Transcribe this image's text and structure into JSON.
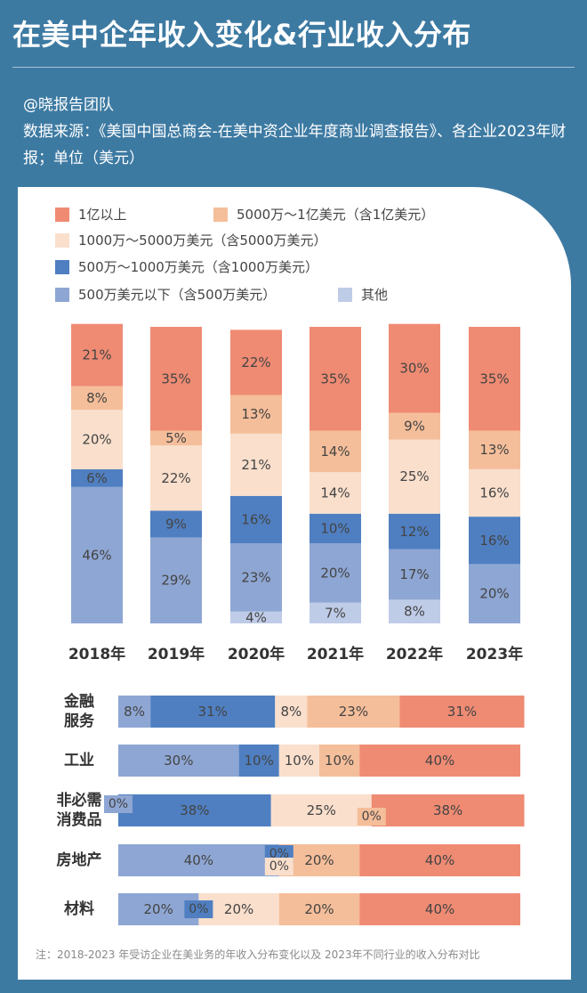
{
  "header": {
    "title": "在美中企年收入变化&行业收入分布",
    "author": "@晓报告团队",
    "source": "数据来源：《美国中国总商会-在美中资企业年度商业调查报告》、各企业2023年财报；单位（美元）"
  },
  "colors": {
    "over100m": "#ef8b73",
    "c50m_100m": "#f5be9a",
    "c10m_50m": "#f9dfcc",
    "c5m_10m": "#4f7fc1",
    "under5m": "#8ea6d3",
    "other": "#bfcce8"
  },
  "chart_data": [
    {
      "type": "bar",
      "stacked": true,
      "orientation": "vertical",
      "categories": [
        "2018年",
        "2019年",
        "2020年",
        "2021年",
        "2022年",
        "2023年"
      ],
      "stack_order": "bottom-to-top",
      "series": [
        {
          "key": "other",
          "name": "其他",
          "values": [
            0,
            0,
            4,
            7,
            8,
            0
          ]
        },
        {
          "key": "under5m",
          "name": "500万美元以下（含500万美元）",
          "values": [
            46,
            29,
            23,
            20,
            17,
            20
          ]
        },
        {
          "key": "c5m_10m",
          "name": "500万～1000万美元（含1000万美元）",
          "values": [
            6,
            9,
            16,
            10,
            12,
            16
          ]
        },
        {
          "key": "c10m_50m",
          "name": "1000万～5000万美元（含5000万美元）",
          "values": [
            20,
            22,
            21,
            14,
            25,
            16
          ]
        },
        {
          "key": "c50m_100m",
          "name": "5000万～1亿美元（含1亿美元）",
          "values": [
            8,
            5,
            13,
            14,
            9,
            13
          ]
        },
        {
          "key": "over100m",
          "name": "1亿以上",
          "values": [
            21,
            35,
            22,
            35,
            30,
            35
          ]
        }
      ],
      "unit": "%",
      "legend_position": "top"
    },
    {
      "type": "bar",
      "stacked": true,
      "orientation": "horizontal",
      "categories": [
        [
          "金融",
          "服务"
        ],
        [
          "工业"
        ],
        [
          "非必需",
          "消费品"
        ],
        [
          "房地产"
        ],
        [
          "材料"
        ]
      ],
      "stack_order": "left-to-right",
      "series": [
        {
          "key": "under5m",
          "name": "500万美元以下（含500万美元）",
          "values": [
            8,
            30,
            0,
            40,
            20
          ]
        },
        {
          "key": "c5m_10m",
          "name": "500万～1000万美元（含1000万美元）",
          "values": [
            31,
            10,
            38,
            0,
            0
          ]
        },
        {
          "key": "c10m_50m",
          "name": "1000万～5000万美元（含5000万美元）",
          "values": [
            8,
            10,
            25,
            0,
            20
          ]
        },
        {
          "key": "c50m_100m",
          "name": "5000万～1亿美元（含1亿美元）",
          "values": [
            23,
            10,
            0,
            20,
            20
          ]
        },
        {
          "key": "over100m",
          "name": "1亿以上",
          "values": [
            31,
            40,
            38,
            40,
            40
          ]
        }
      ],
      "unit": "%"
    }
  ],
  "legend": [
    {
      "key": "over100m",
      "label": "1亿以上"
    },
    {
      "key": "c50m_100m",
      "label": "5000万～1亿美元（含1亿美元）"
    },
    {
      "key": "c10m_50m",
      "label": "1000万～5000万美元（含5000万美元）"
    },
    {
      "key": "c5m_10m",
      "label": "500万～1000万美元（含1000万美元）"
    },
    {
      "key": "under5m",
      "label": "500万美元以下（含500万美元）"
    },
    {
      "key": "other",
      "label": "其他"
    }
  ],
  "footer": {
    "note": "注：2018-2023 年受访企业在美业务的年收入分布变化以及 2023年不同行业的收入分布对比"
  }
}
